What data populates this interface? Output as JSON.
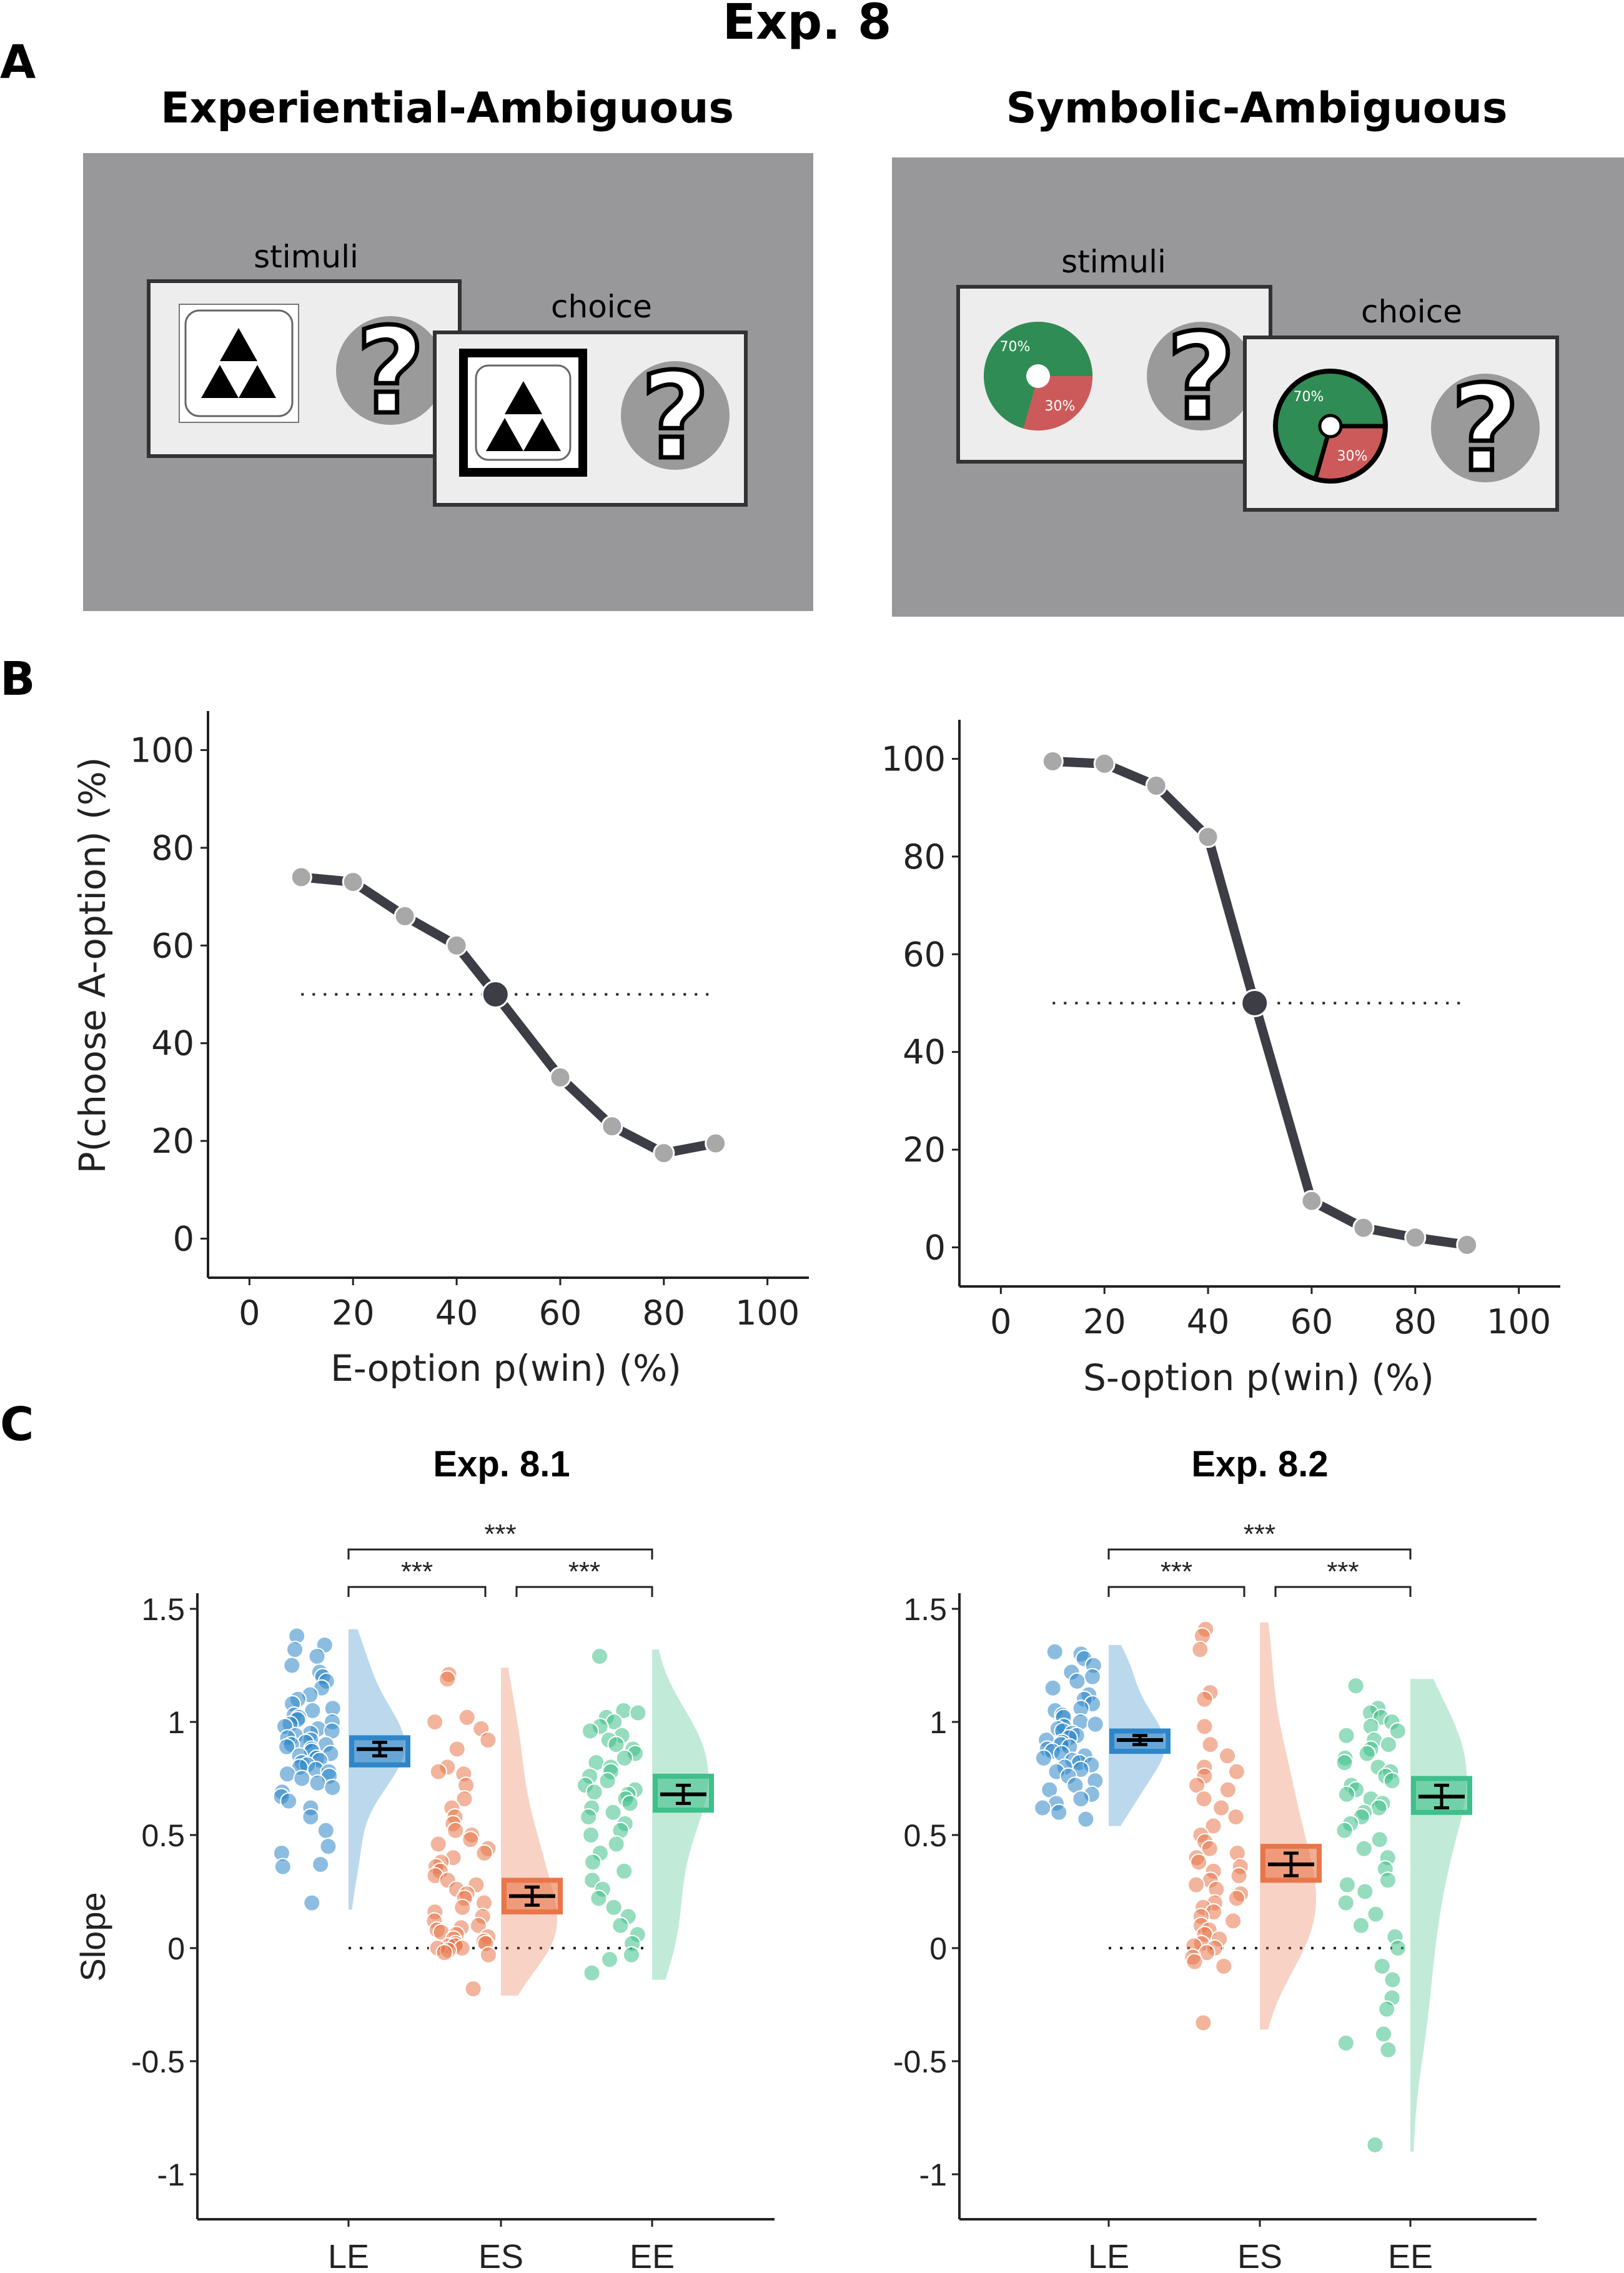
{
  "figure_title": "Exp. 8",
  "panel_labels": [
    "A",
    "B",
    "C"
  ],
  "panel_a": {
    "left": {
      "title": "Experiential-Ambiguous",
      "stimuli_label": "stimuli",
      "choice_label": "choice",
      "question_mark": "?"
    },
    "right": {
      "title": "Symbolic-Ambiguous",
      "stimuli_label": "stimuli",
      "choice_label": "choice",
      "question_mark": "?",
      "pie_win_label": "70%",
      "pie_loss_label": "30%"
    }
  },
  "colors": {
    "background_screen": "#98989b",
    "card": "#ededed",
    "line": "#3d3d45",
    "point": "#a8a8a8",
    "LE": "#2e86c8",
    "ES": "#e8764a",
    "EE": "#3fbf8a",
    "pie_green": "#2f8c55",
    "pie_red": "#cd5a5a"
  },
  "chart_data": [
    {
      "type": "line",
      "panel": "B-left",
      "xlabel": "E-option p(win) (%)",
      "ylabel": "P(choose A-option) (%)",
      "xlim": [
        -8,
        108
      ],
      "ylim": [
        -8,
        108
      ],
      "xticks": [
        "0",
        "20",
        "40",
        "60",
        "80",
        "100"
      ],
      "yticks": [
        "0",
        "20",
        "40",
        "60",
        "80",
        "100"
      ],
      "x": [
        10,
        20,
        30,
        40,
        47.5,
        60,
        70,
        80,
        90
      ],
      "y": [
        74,
        73,
        66,
        60,
        50,
        33,
        23,
        17.5,
        19.5
      ],
      "indifference_point": {
        "x": 47.5,
        "y": 50
      },
      "reference_line": {
        "y": 50,
        "x_range": [
          10,
          90
        ],
        "style": "dotted"
      }
    },
    {
      "type": "line",
      "panel": "B-right",
      "xlabel": "S-option p(win) (%)",
      "ylabel": "",
      "xlim": [
        -8,
        108
      ],
      "ylim": [
        -8,
        108
      ],
      "xticks": [
        "0",
        "20",
        "40",
        "60",
        "80",
        "100"
      ],
      "yticks": [
        "0",
        "20",
        "40",
        "60",
        "80",
        "100"
      ],
      "x": [
        10,
        20,
        30,
        40,
        49,
        60,
        70,
        80,
        90
      ],
      "y": [
        99.5,
        99,
        94.5,
        84,
        50,
        9.5,
        4,
        2,
        0.5
      ],
      "indifference_point": {
        "x": 49,
        "y": 50
      },
      "reference_line": {
        "y": 50,
        "x_range": [
          10,
          90
        ],
        "style": "dotted"
      }
    },
    {
      "type": "scatter",
      "subtype": "raincloud",
      "panel": "C-left",
      "title": "Exp. 8.1",
      "ylabel": "Slope",
      "categories": [
        "LE",
        "ES",
        "EE"
      ],
      "ylim": [
        -1.2,
        1.5
      ],
      "yticks": [
        "1.5",
        "1",
        "0.5",
        "0",
        "-0.5",
        "-1"
      ],
      "series": [
        {
          "name": "LE",
          "mean": 0.88,
          "sem": 0.03,
          "box": [
            0.81,
            0.93
          ],
          "points": [
            1.38,
            1.34,
            1.32,
            1.29,
            1.25,
            1.22,
            1.2,
            1.18,
            1.15,
            1.12,
            1.1,
            1.08,
            1.06,
            1.05,
            1.03,
            1.02,
            1.01,
            1.0,
            0.99,
            0.98,
            0.97,
            0.96,
            0.95,
            0.94,
            0.93,
            0.92,
            0.91,
            0.9,
            0.9,
            0.89,
            0.88,
            0.87,
            0.86,
            0.85,
            0.84,
            0.83,
            0.82,
            0.81,
            0.8,
            0.79,
            0.78,
            0.77,
            0.76,
            0.75,
            0.73,
            0.71,
            0.69,
            0.67,
            0.65,
            0.62,
            0.58,
            0.52,
            0.45,
            0.42,
            0.37,
            0.36,
            0.2
          ]
        },
        {
          "name": "ES",
          "mean": 0.23,
          "sem": 0.04,
          "box": [
            0.16,
            0.3
          ],
          "points": [
            1.21,
            1.19,
            1.02,
            1.0,
            0.97,
            0.92,
            0.88,
            0.8,
            0.78,
            0.77,
            0.72,
            0.66,
            0.62,
            0.58,
            0.55,
            0.52,
            0.5,
            0.48,
            0.46,
            0.44,
            0.42,
            0.4,
            0.38,
            0.36,
            0.34,
            0.32,
            0.3,
            0.28,
            0.26,
            0.24,
            0.22,
            0.2,
            0.18,
            0.16,
            0.14,
            0.12,
            0.1,
            0.09,
            0.08,
            0.07,
            0.06,
            0.05,
            0.04,
            0.03,
            0.02,
            0.02,
            0.01,
            0.01,
            0.0,
            0.0,
            -0.01,
            -0.02,
            -0.03,
            -0.18
          ]
        },
        {
          "name": "EE",
          "mean": 0.68,
          "sem": 0.04,
          "box": [
            0.61,
            0.76
          ],
          "points": [
            1.29,
            1.05,
            1.04,
            1.02,
            1.0,
            0.98,
            0.96,
            0.94,
            0.92,
            0.9,
            0.88,
            0.86,
            0.84,
            0.82,
            0.8,
            0.78,
            0.76,
            0.74,
            0.72,
            0.7,
            0.69,
            0.68,
            0.66,
            0.64,
            0.62,
            0.6,
            0.58,
            0.55,
            0.52,
            0.5,
            0.46,
            0.42,
            0.38,
            0.34,
            0.3,
            0.26,
            0.22,
            0.18,
            0.14,
            0.1,
            0.06,
            0.02,
            -0.03,
            -0.05,
            -0.11
          ]
        }
      ],
      "comparisons": [
        {
          "pair": [
            "LE",
            "EE"
          ],
          "label": "***"
        },
        {
          "pair": [
            "LE",
            "ES"
          ],
          "label": "***"
        },
        {
          "pair": [
            "ES",
            "EE"
          ],
          "label": "***"
        }
      ],
      "reference_line": {
        "y": 0,
        "style": "dotted"
      }
    },
    {
      "type": "scatter",
      "subtype": "raincloud",
      "panel": "C-right",
      "title": "Exp. 8.2",
      "ylabel": "",
      "categories": [
        "LE",
        "ES",
        "EE"
      ],
      "ylim": [
        -1.2,
        1.5
      ],
      "yticks": [
        "1.5",
        "1",
        "0.5",
        "0",
        "-0.5",
        "-1"
      ],
      "series": [
        {
          "name": "LE",
          "mean": 0.92,
          "sem": 0.02,
          "box": [
            0.87,
            0.96
          ],
          "points": [
            1.31,
            1.3,
            1.28,
            1.25,
            1.22,
            1.2,
            1.18,
            1.15,
            1.12,
            1.1,
            1.08,
            1.06,
            1.05,
            1.03,
            1.02,
            1.0,
            0.99,
            0.98,
            0.97,
            0.96,
            0.95,
            0.94,
            0.93,
            0.92,
            0.91,
            0.9,
            0.89,
            0.88,
            0.87,
            0.86,
            0.85,
            0.84,
            0.83,
            0.82,
            0.81,
            0.8,
            0.79,
            0.78,
            0.76,
            0.74,
            0.72,
            0.7,
            0.68,
            0.66,
            0.64,
            0.62,
            0.6,
            0.57
          ]
        },
        {
          "name": "ES",
          "mean": 0.37,
          "sem": 0.05,
          "box": [
            0.3,
            0.45
          ],
          "points": [
            1.41,
            1.38,
            1.32,
            1.13,
            1.1,
            0.98,
            0.9,
            0.85,
            0.8,
            0.78,
            0.76,
            0.72,
            0.7,
            0.66,
            0.62,
            0.58,
            0.54,
            0.5,
            0.47,
            0.44,
            0.42,
            0.4,
            0.38,
            0.36,
            0.34,
            0.32,
            0.3,
            0.28,
            0.26,
            0.24,
            0.22,
            0.2,
            0.18,
            0.16,
            0.14,
            0.12,
            0.1,
            0.08,
            0.06,
            0.04,
            0.02,
            0.01,
            0.0,
            -0.02,
            -0.04,
            -0.06,
            -0.08,
            -0.33
          ]
        },
        {
          "name": "EE",
          "mean": 0.67,
          "sem": 0.05,
          "box": [
            0.6,
            0.75
          ],
          "points": [
            1.16,
            1.06,
            1.04,
            1.02,
            1.0,
            0.98,
            0.96,
            0.94,
            0.92,
            0.9,
            0.88,
            0.86,
            0.84,
            0.82,
            0.8,
            0.78,
            0.76,
            0.74,
            0.72,
            0.7,
            0.68,
            0.66,
            0.64,
            0.62,
            0.6,
            0.58,
            0.55,
            0.52,
            0.48,
            0.44,
            0.4,
            0.35,
            0.3,
            0.28,
            0.25,
            0.2,
            0.15,
            0.1,
            0.05,
            0.0,
            -0.08,
            -0.14,
            -0.22,
            -0.27,
            -0.38,
            -0.42,
            -0.45,
            -0.87
          ]
        }
      ],
      "comparisons": [
        {
          "pair": [
            "LE",
            "EE"
          ],
          "label": "***"
        },
        {
          "pair": [
            "LE",
            "ES"
          ],
          "label": "***"
        },
        {
          "pair": [
            "ES",
            "EE"
          ],
          "label": "***"
        }
      ],
      "reference_line": {
        "y": 0,
        "style": "dotted"
      }
    }
  ]
}
